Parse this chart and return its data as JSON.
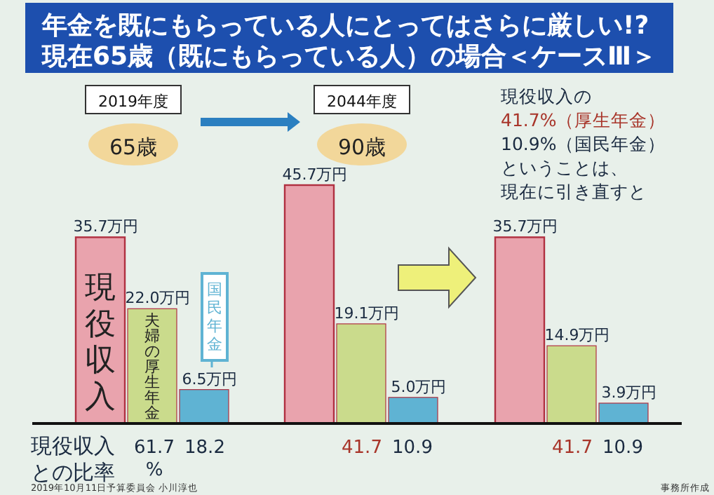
{
  "chart_data": {
    "type": "bar",
    "title": "年金を既にもらっている人にとってはさらに厳しい!?",
    "subtitle": "現在65歳（既にもらっている人）の場合＜ケースⅢ＞",
    "categories": [
      "2019年度",
      "2044年度",
      null
    ],
    "series": [
      {
        "name": "現役収入",
        "color": "#e9a3ad",
        "values": [
          35.7,
          45.7,
          35.7
        ],
        "value_labels": [
          "35.7万円",
          "45.7万円",
          "35.7万円"
        ]
      },
      {
        "name": "夫婦の厚生年金",
        "color": "#cadb8c",
        "values": [
          22.0,
          19.1,
          14.9
        ],
        "value_labels": [
          "22.0万円",
          "19.1万円",
          "14.9万円"
        ]
      },
      {
        "name": "国民年金",
        "color": "#5fb3d3",
        "values": [
          6.5,
          5.0,
          3.9
        ],
        "value_labels": [
          "6.5万円",
          "5.0万円",
          "3.9万円"
        ]
      }
    ],
    "annotations": [
      "65歳",
      "90歳",
      "現役収入の",
      "41.7%（厚生年金）",
      "10.9%（国民年金）",
      "ということは、",
      "現在に引き直すと",
      "現役収入との比率",
      "61.7%",
      "18.2",
      "41.7",
      "10.9",
      "41.7",
      "10.9",
      "2019年10月11日予算委員会 小川淳也",
      "事務所作成"
    ]
  }
}
